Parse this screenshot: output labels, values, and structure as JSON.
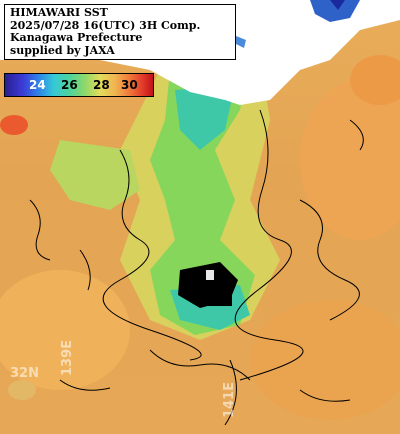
{
  "caption": {
    "line1": "HIMAWARI SST",
    "line2": "2025/07/28 16(UTC) 3H Comp.",
    "line3": "Kanagawa Prefecture",
    "line4": "supplied by JAXA"
  },
  "colorbar": {
    "ticks": [
      "24",
      "26",
      "28",
      "30"
    ],
    "tick_colors": [
      "#ffffff",
      "#000000",
      "#000000",
      "#000000"
    ]
  },
  "coordinates": {
    "lat_label": "32N",
    "lon_label_left": "139E",
    "lon_label_right": "141E"
  },
  "colors": {
    "warm_sea": "#e6a856",
    "cool_sea": "#7fd45c",
    "cold_sea": "#3ec8b8",
    "land": "#ffffff",
    "cloud_mask": "#000000"
  }
}
